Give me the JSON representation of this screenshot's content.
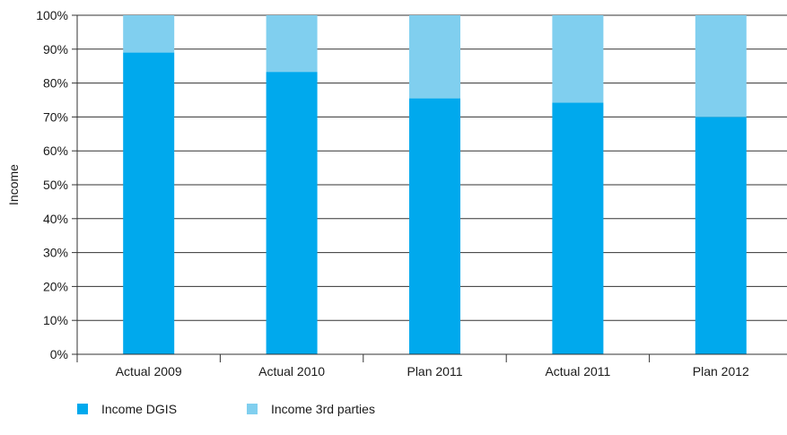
{
  "chart_data": {
    "type": "bar",
    "stacked": true,
    "categories": [
      "Actual 2009",
      "Actual 2010",
      "Plan 2011",
      "Actual 2011",
      "Plan 2012"
    ],
    "series": [
      {
        "name": "Income DGIS",
        "values": [
          89,
          83.3,
          75.5,
          74.2,
          70
        ],
        "color": "#00a9ed"
      },
      {
        "name": "Income 3rd parties",
        "values": [
          11,
          16.7,
          24.5,
          25.8,
          30
        ],
        "color": "#80cfef"
      }
    ],
    "ylabel": "Income",
    "xlabel": "",
    "ylim": [
      0,
      100
    ],
    "yticks": [
      "0%",
      "10%",
      "20%",
      "30%",
      "40%",
      "50%",
      "60%",
      "70%",
      "80%",
      "90%",
      "100%"
    ],
    "grid": true,
    "legend": "bottom-left"
  }
}
